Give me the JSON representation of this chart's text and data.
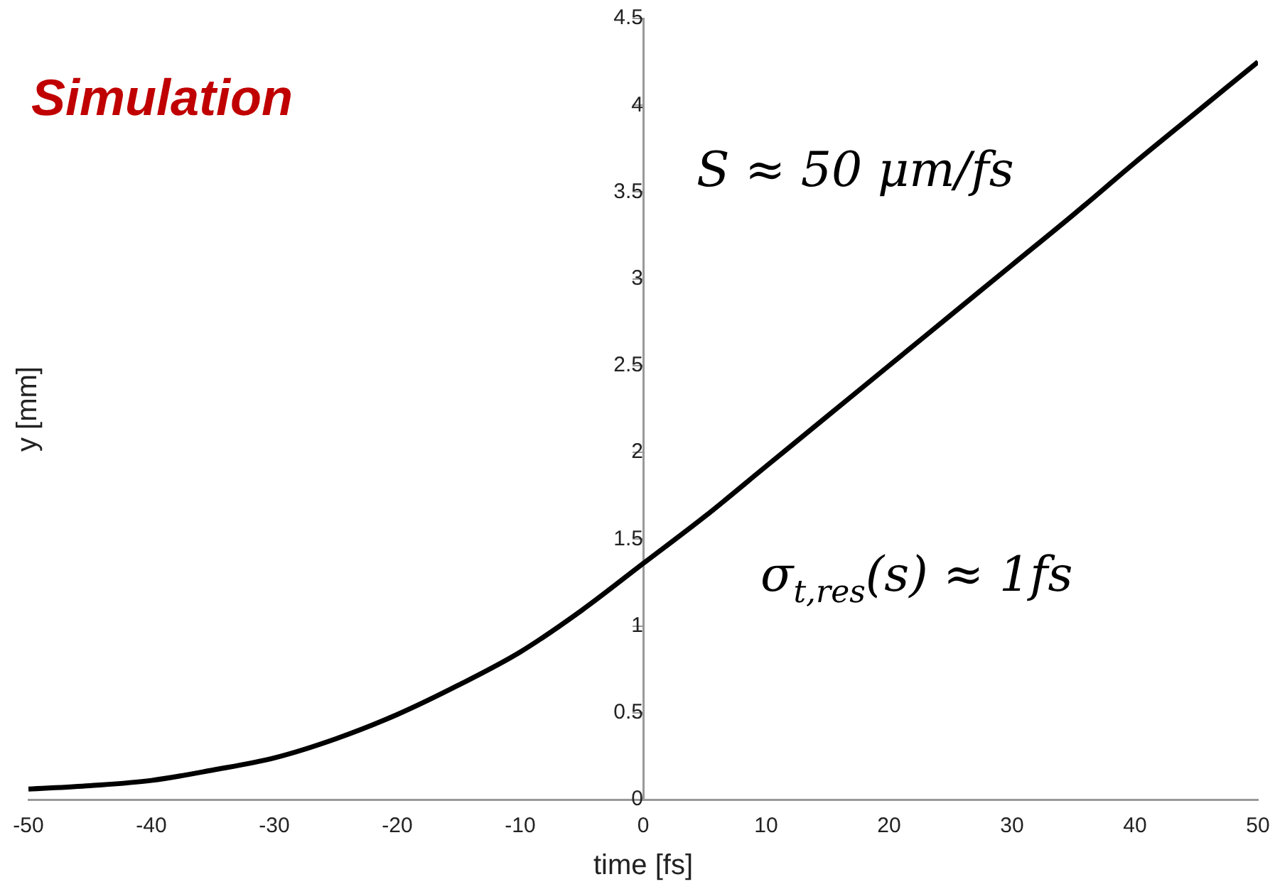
{
  "chart_data": {
    "type": "line",
    "title": "Simulation",
    "xlabel": "time [fs]",
    "ylabel": "y [mm]",
    "annotations": [
      "S ≈ 50 μm/fs",
      "σ$_{t,res}$(s) ≈ 1fs"
    ],
    "x": [
      -50,
      -45,
      -40,
      -35,
      -30,
      -25,
      -20,
      -15,
      -10,
      -5,
      0,
      5,
      10,
      15,
      20,
      25,
      30,
      35,
      40,
      45,
      50
    ],
    "series": [
      {
        "color": "#000000",
        "values": [
          0.06,
          0.08,
          0.11,
          0.17,
          0.24,
          0.35,
          0.49,
          0.66,
          0.85,
          1.09,
          1.36,
          1.63,
          1.92,
          2.21,
          2.5,
          2.79,
          3.08,
          3.37,
          3.67,
          3.96,
          4.25
        ]
      }
    ],
    "xlim": [
      -50,
      50
    ],
    "xticks": [
      -50,
      -40,
      -30,
      -20,
      -10,
      0,
      10,
      20,
      30,
      40,
      50
    ],
    "ylim": [
      0,
      4.5
    ],
    "yticks": [
      0,
      0.5,
      1,
      1.5,
      2,
      2.5,
      3,
      3.5,
      4,
      4.5
    ],
    "grid": false,
    "legend": false,
    "marker": "none",
    "line_style": "solid"
  }
}
